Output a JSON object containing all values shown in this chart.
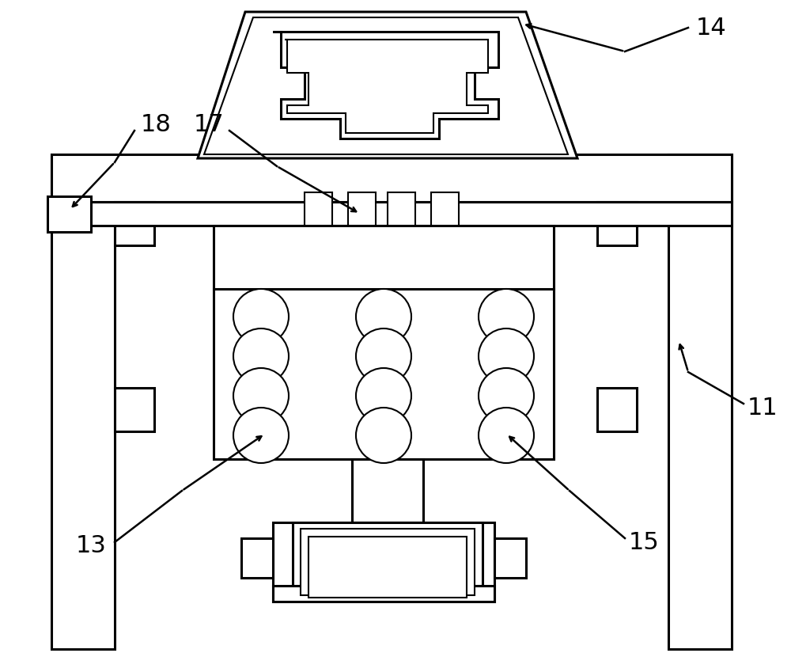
{
  "bg_color": "#ffffff",
  "lc": "#000000",
  "lw": 2.2,
  "tlw": 1.5,
  "font_size": 22,
  "figw": 10.0,
  "figh": 8.25,
  "dpi": 100
}
